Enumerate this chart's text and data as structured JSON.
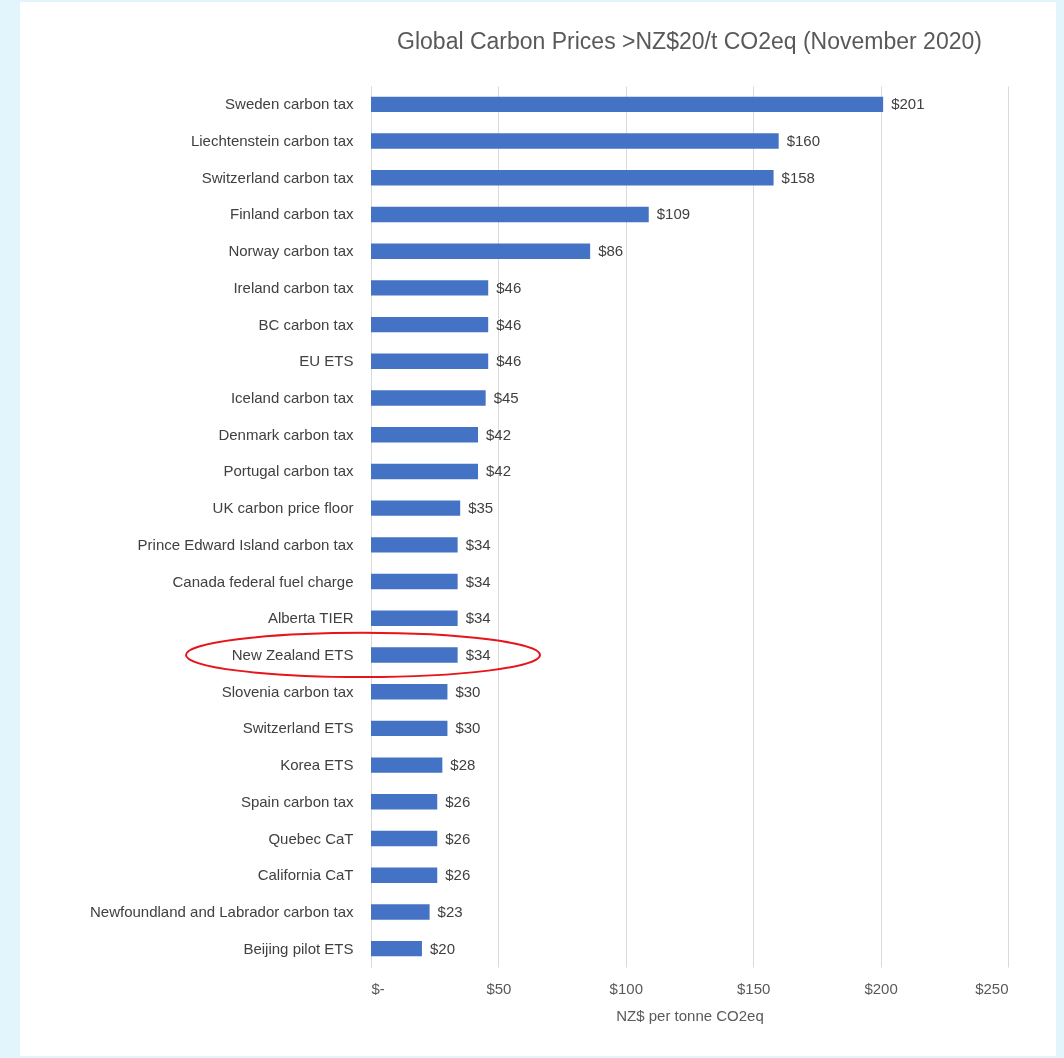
{
  "chart_data": {
    "type": "bar",
    "orientation": "horizontal",
    "title": "Global Carbon Prices >NZ$20/t CO2eq (November 2020)",
    "xlabel": "NZ$ per tonne CO2eq",
    "categories": [
      "Sweden carbon tax",
      "Liechtenstein carbon tax",
      "Switzerland carbon tax",
      "Finland carbon tax",
      "Norway carbon tax",
      "Ireland carbon tax",
      "BC carbon tax",
      "EU ETS",
      "Iceland carbon tax",
      "Denmark carbon tax",
      "Portugal carbon tax",
      "UK carbon price floor",
      "Prince Edward Island carbon tax",
      "Canada federal fuel charge",
      "Alberta TIER",
      "New Zealand ETS",
      "Slovenia carbon tax",
      "Switzerland ETS",
      "Korea ETS",
      "Spain carbon tax",
      "Quebec CaT",
      "California CaT",
      "Newfoundland and Labrador carbon tax",
      "Beijing pilot ETS"
    ],
    "values": [
      201,
      160,
      158,
      109,
      86,
      46,
      46,
      46,
      45,
      42,
      42,
      35,
      34,
      34,
      34,
      34,
      30,
      30,
      28,
      26,
      26,
      26,
      23,
      20
    ],
    "value_labels": [
      "$201",
      "$160",
      "$158",
      "$109",
      "$86",
      "$46",
      "$46",
      "$46",
      "$45",
      "$42",
      "$42",
      "$35",
      "$34",
      "$34",
      "$34",
      "$34",
      "$30",
      "$30",
      "$28",
      "$26",
      "$26",
      "$26",
      "$23",
      "$20"
    ],
    "color": "#4472c4",
    "xlim": [
      0,
      250
    ],
    "xticks": [
      {
        "value": 0,
        "label": "$-"
      },
      {
        "value": 50,
        "label": "$50"
      },
      {
        "value": 100,
        "label": "$100"
      },
      {
        "value": 150,
        "label": "$150"
      },
      {
        "value": 200,
        "label": "$200"
      },
      {
        "value": 250,
        "label": "$250"
      }
    ],
    "grid": "x"
  }
}
